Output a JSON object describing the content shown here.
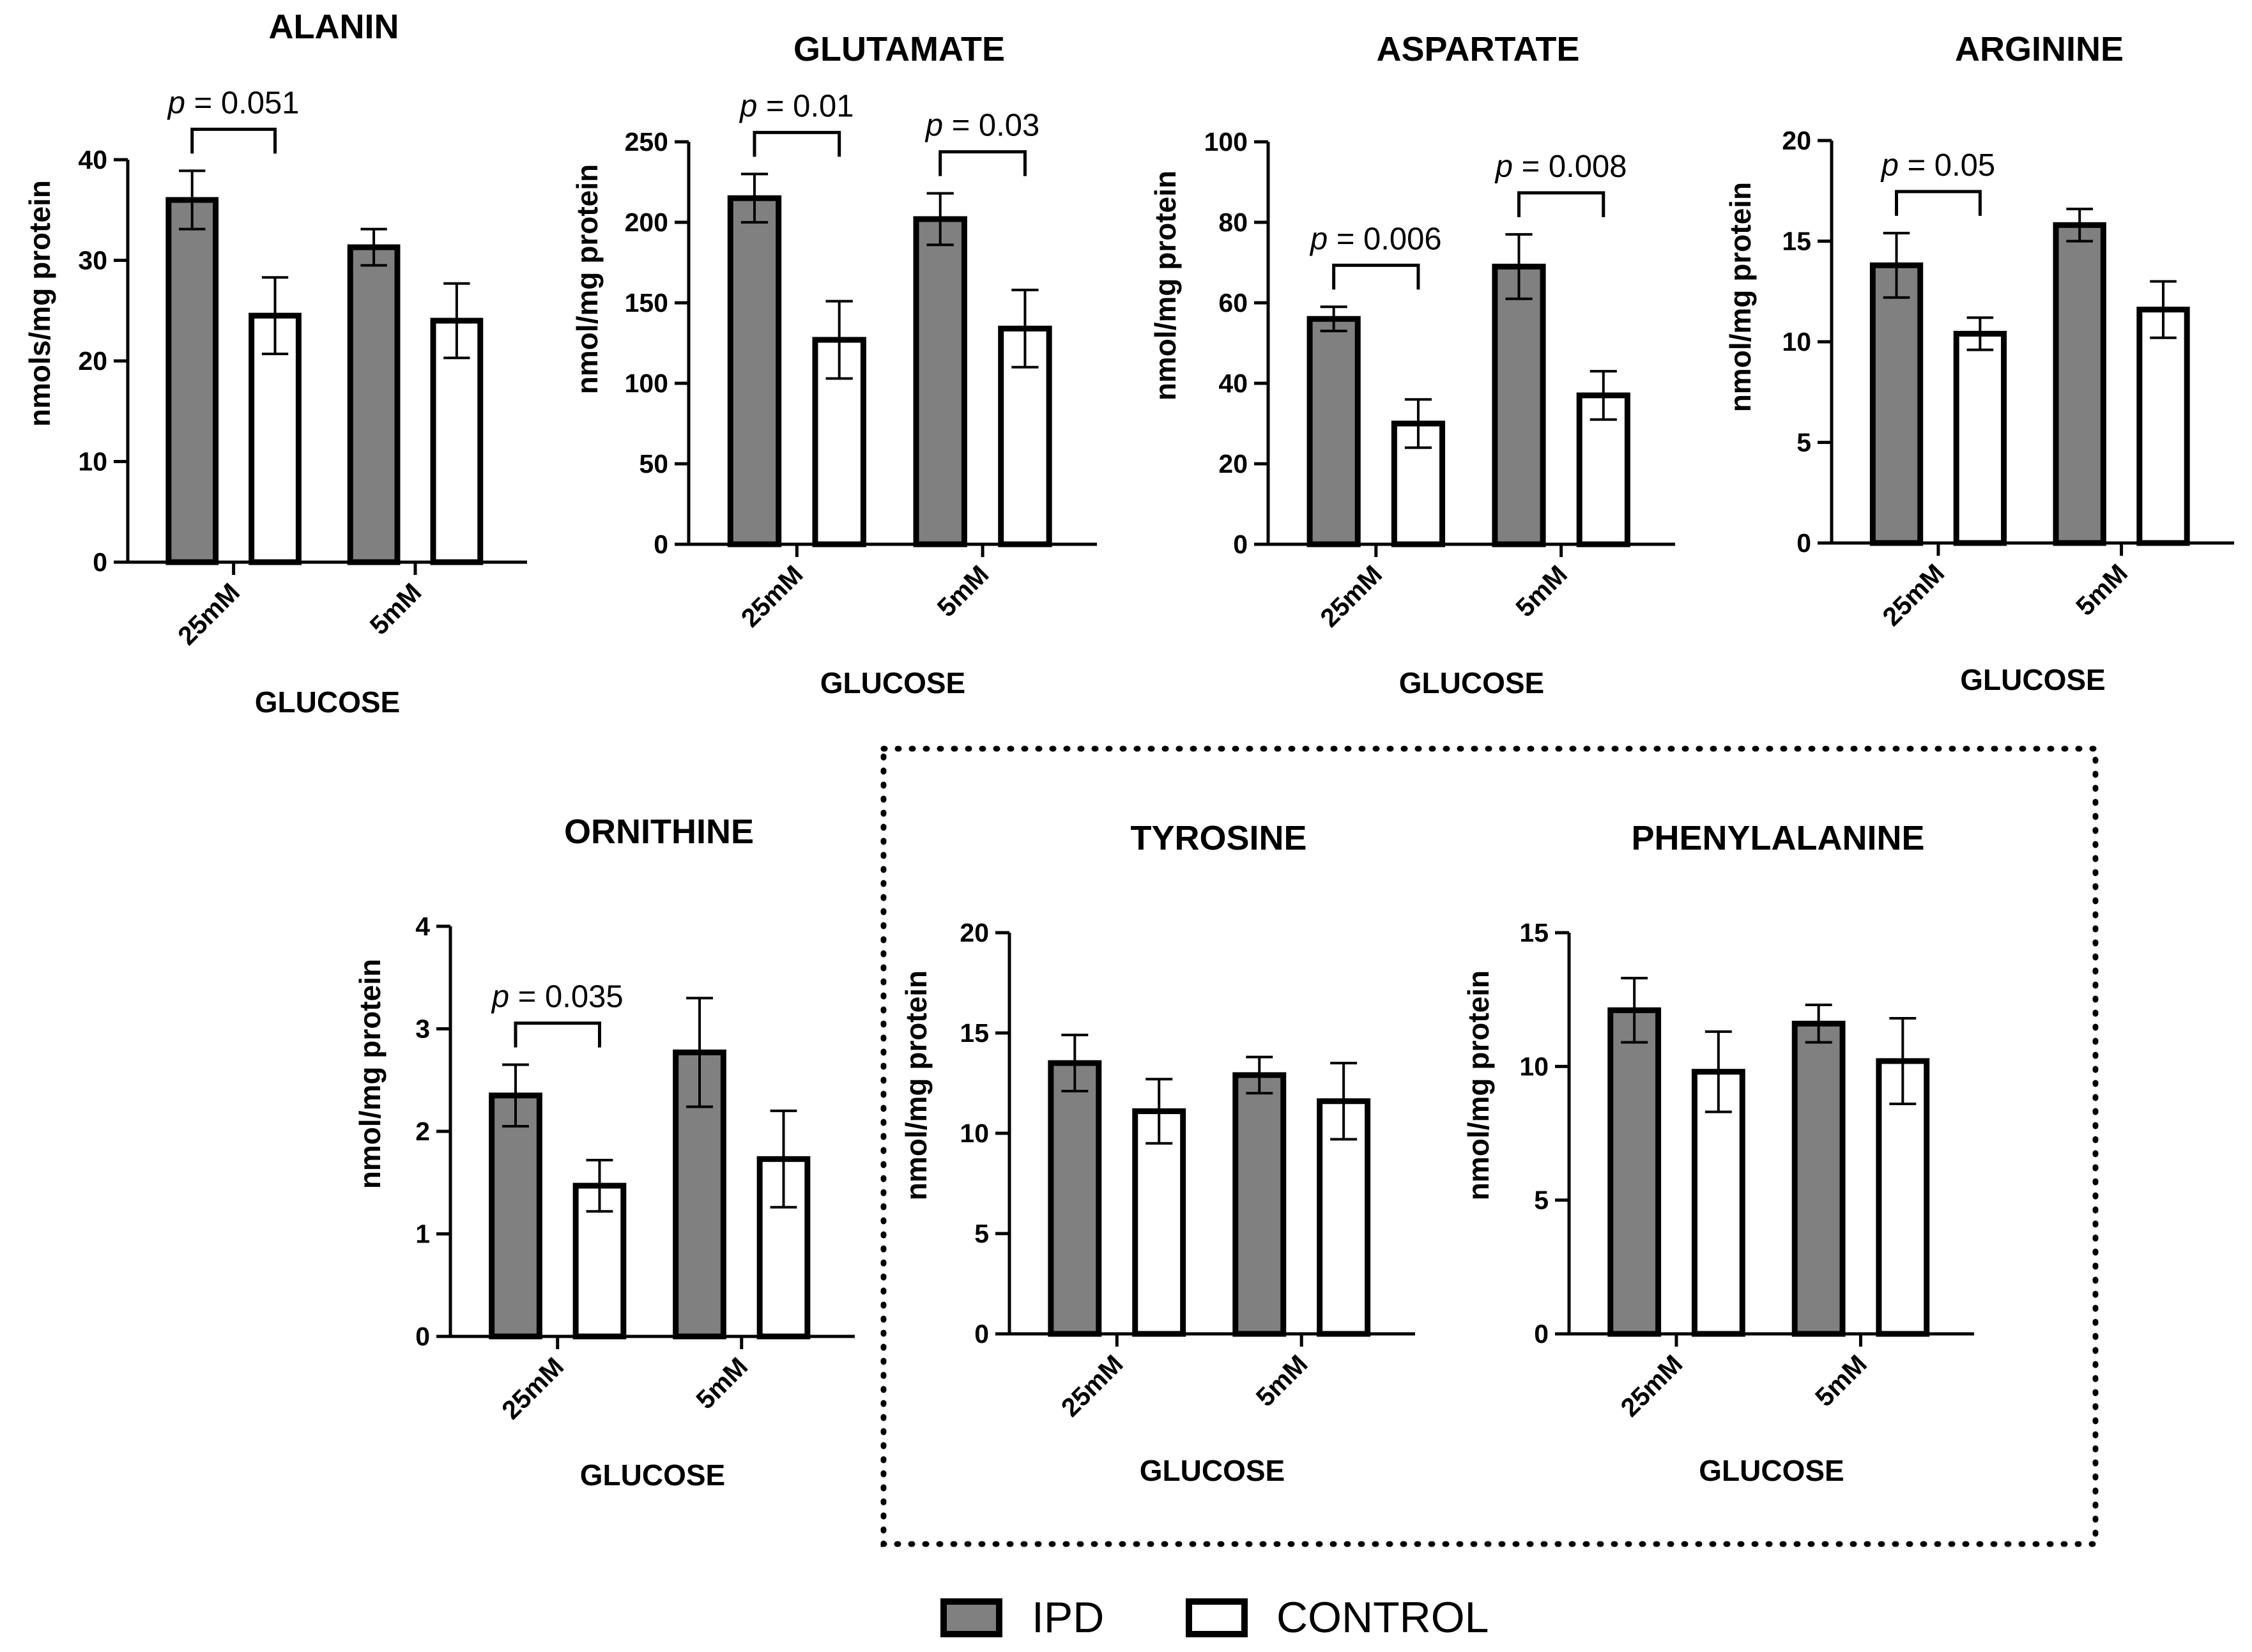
{
  "legend": {
    "items": [
      {
        "label": "IPD",
        "color": "#808080"
      },
      {
        "label": "CONTROL",
        "color": "#ffffff"
      }
    ]
  },
  "colors": {
    "ipd": "#808080",
    "control": "#ffffff",
    "stroke": "#000000"
  },
  "chart_data": [
    {
      "type": "bar",
      "title": "ALANIN",
      "xlabel": "GLUCOSE",
      "ylabel": "nmols/mg protein",
      "categories": [
        "25mM",
        "5mM"
      ],
      "ylim": [
        0,
        40
      ],
      "yticks": [
        0,
        10,
        20,
        30,
        40
      ],
      "series": [
        {
          "name": "IPD",
          "values": [
            36,
            31.3
          ],
          "errors": [
            2.9,
            1.8
          ]
        },
        {
          "name": "CONTROL",
          "values": [
            24.5,
            24
          ],
          "errors": [
            3.8,
            3.7
          ]
        }
      ],
      "annotations": [
        {
          "text": "p = 0.051",
          "prefix": "p",
          "value": " = 0.051",
          "category": 0
        }
      ]
    },
    {
      "type": "bar",
      "title": "GLUTAMATE",
      "xlabel": "GLUCOSE",
      "ylabel": "nmol/mg protein",
      "categories": [
        "25mM",
        "5mM"
      ],
      "ylim": [
        0,
        250
      ],
      "yticks": [
        0,
        50,
        100,
        150,
        200,
        250
      ],
      "series": [
        {
          "name": "IPD",
          "values": [
            215,
            202
          ],
          "errors": [
            15,
            16
          ]
        },
        {
          "name": "CONTROL",
          "values": [
            127,
            134
          ],
          "errors": [
            24,
            24
          ]
        }
      ],
      "annotations": [
        {
          "text": "p = 0.01",
          "prefix": "p",
          "value": " = 0.01",
          "category": 0
        },
        {
          "text": "p = 0.03",
          "prefix": "p",
          "value": " = 0.03",
          "category": 1
        }
      ]
    },
    {
      "type": "bar",
      "title": "ASPARTATE",
      "xlabel": "GLUCOSE",
      "ylabel": "nmol/mg protein",
      "categories": [
        "25mM",
        "5mM"
      ],
      "ylim": [
        0,
        100
      ],
      "yticks": [
        0,
        20,
        40,
        60,
        80,
        100
      ],
      "series": [
        {
          "name": "IPD",
          "values": [
            56,
            69
          ],
          "errors": [
            3,
            8
          ]
        },
        {
          "name": "CONTROL",
          "values": [
            30,
            37
          ],
          "errors": [
            6,
            6
          ]
        }
      ],
      "annotations": [
        {
          "text": "p = 0.006",
          "prefix": "p",
          "value": " = 0.006",
          "category": 0
        },
        {
          "text": "p = 0.008",
          "prefix": "p",
          "value": " = 0.008",
          "category": 1
        }
      ]
    },
    {
      "type": "bar",
      "title": "ARGININE",
      "xlabel": "GLUCOSE",
      "ylabel": "nmol/mg protein",
      "categories": [
        "25mM",
        "5mM"
      ],
      "ylim": [
        0,
        20
      ],
      "yticks": [
        0,
        5,
        10,
        15,
        20
      ],
      "series": [
        {
          "name": "IPD",
          "values": [
            13.8,
            15.8
          ],
          "errors": [
            1.6,
            0.8
          ]
        },
        {
          "name": "CONTROL",
          "values": [
            10.4,
            11.6
          ],
          "errors": [
            0.8,
            1.4
          ]
        }
      ],
      "annotations": [
        {
          "text": "p = 0.05",
          "prefix": "p",
          "value": " = 0.05",
          "category": 0
        }
      ]
    },
    {
      "type": "bar",
      "title": "ORNITHINE",
      "xlabel": "GLUCOSE",
      "ylabel": "nmol/mg protein",
      "categories": [
        "25mM",
        "5mM"
      ],
      "ylim": [
        0,
        4
      ],
      "yticks": [
        0,
        1,
        2,
        3,
        4
      ],
      "series": [
        {
          "name": "IPD",
          "values": [
            2.35,
            2.77
          ],
          "errors": [
            0.3,
            0.53
          ]
        },
        {
          "name": "CONTROL",
          "values": [
            1.47,
            1.73
          ],
          "errors": [
            0.25,
            0.47
          ]
        }
      ],
      "annotations": [
        {
          "text": "p = 0.035",
          "prefix": "p",
          "value": " = 0.035",
          "category": 0
        }
      ]
    },
    {
      "type": "bar",
      "title": "TYROSINE",
      "xlabel": "GLUCOSE",
      "ylabel": "nmol/mg protein",
      "categories": [
        "25mM",
        "5mM"
      ],
      "ylim": [
        0,
        20
      ],
      "yticks": [
        0,
        5,
        10,
        15,
        20
      ],
      "series": [
        {
          "name": "IPD",
          "values": [
            13.5,
            12.9
          ],
          "errors": [
            1.4,
            0.9
          ]
        },
        {
          "name": "CONTROL",
          "values": [
            11.1,
            11.6
          ],
          "errors": [
            1.6,
            1.9
          ]
        }
      ],
      "annotations": []
    },
    {
      "type": "bar",
      "title": "PHENYLALANINE",
      "xlabel": "GLUCOSE",
      "ylabel": "nmol/mg protein",
      "categories": [
        "25mM",
        "5mM"
      ],
      "ylim": [
        0,
        15
      ],
      "yticks": [
        0,
        5,
        10,
        15
      ],
      "series": [
        {
          "name": "IPD",
          "values": [
            12.1,
            11.6
          ],
          "errors": [
            1.2,
            0.7
          ]
        },
        {
          "name": "CONTROL",
          "values": [
            9.8,
            10.2
          ],
          "errors": [
            1.5,
            1.6
          ]
        }
      ],
      "annotations": []
    }
  ]
}
